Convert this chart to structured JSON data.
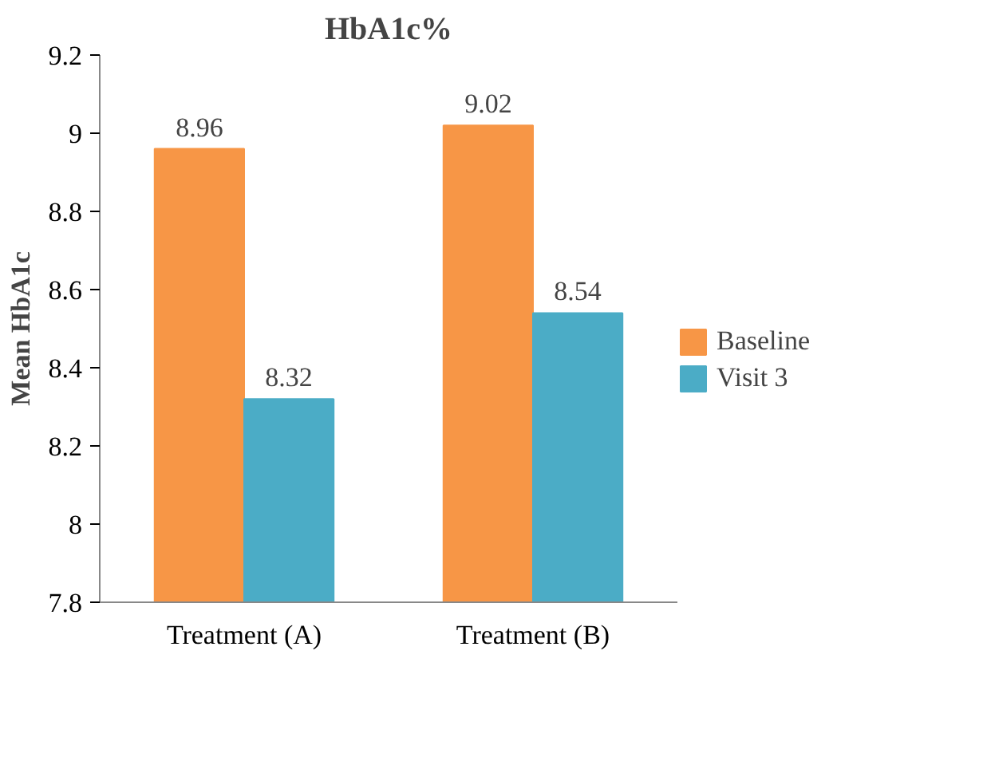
{
  "chart_data": {
    "type": "bar",
    "title": "HbA1c%",
    "ylabel": "Mean HbA1c",
    "categories": [
      "Treatment (A)",
      "Treatment (B)"
    ],
    "series": [
      {
        "name": "Baseline",
        "color": "#f79646",
        "values": [
          8.96,
          9.02
        ]
      },
      {
        "name": "Visit 3",
        "color": "#4bacc6",
        "values": [
          8.32,
          8.54
        ]
      }
    ],
    "ylim": [
      7.8,
      9.2
    ],
    "yticks": [
      7.8,
      8,
      8.2,
      8.4,
      8.6,
      8.8,
      9,
      9.2
    ],
    "grid": false,
    "legend": "right",
    "data_labels": true
  }
}
